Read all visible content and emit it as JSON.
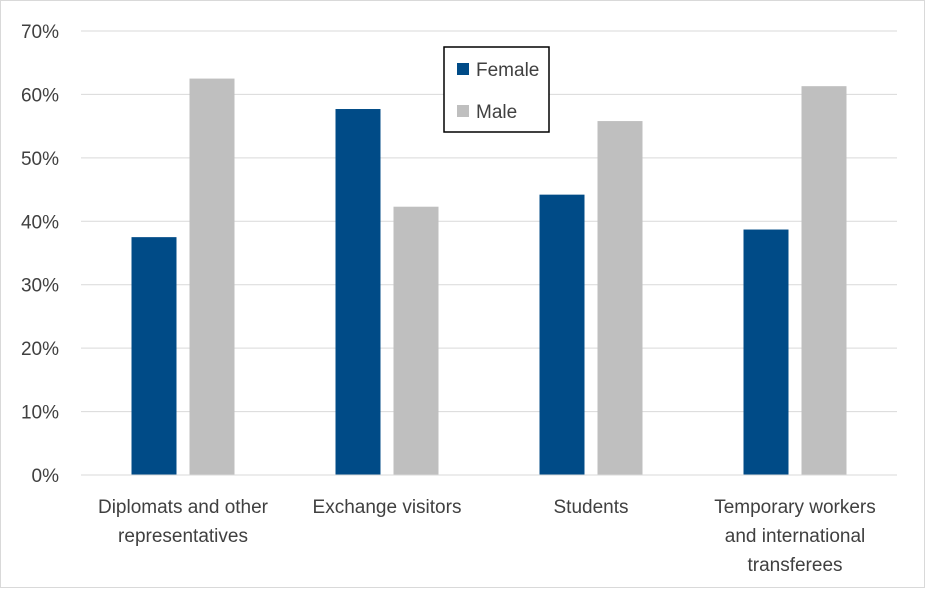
{
  "chart_data": {
    "type": "bar",
    "categories": [
      [
        "Diplomats and other",
        "representatives"
      ],
      [
        "Exchange visitors"
      ],
      [
        "Students"
      ],
      [
        "Temporary workers",
        "and international",
        "transferees"
      ]
    ],
    "series": [
      {
        "name": "Female",
        "color": "#004b87",
        "values": [
          37.5,
          57.7,
          44.2,
          38.7
        ]
      },
      {
        "name": "Male",
        "color": "#bfbfbf",
        "values": [
          62.5,
          42.3,
          55.8,
          61.3
        ]
      }
    ],
    "ylim": [
      0,
      70
    ],
    "yticks": [
      0,
      10,
      20,
      30,
      40,
      50,
      60,
      70
    ],
    "ytick_labels": [
      "0%",
      "10%",
      "20%",
      "30%",
      "40%",
      "50%",
      "60%",
      "70%"
    ],
    "grid": true,
    "legend_position": "top-center",
    "title": "",
    "xlabel": "",
    "ylabel": ""
  }
}
